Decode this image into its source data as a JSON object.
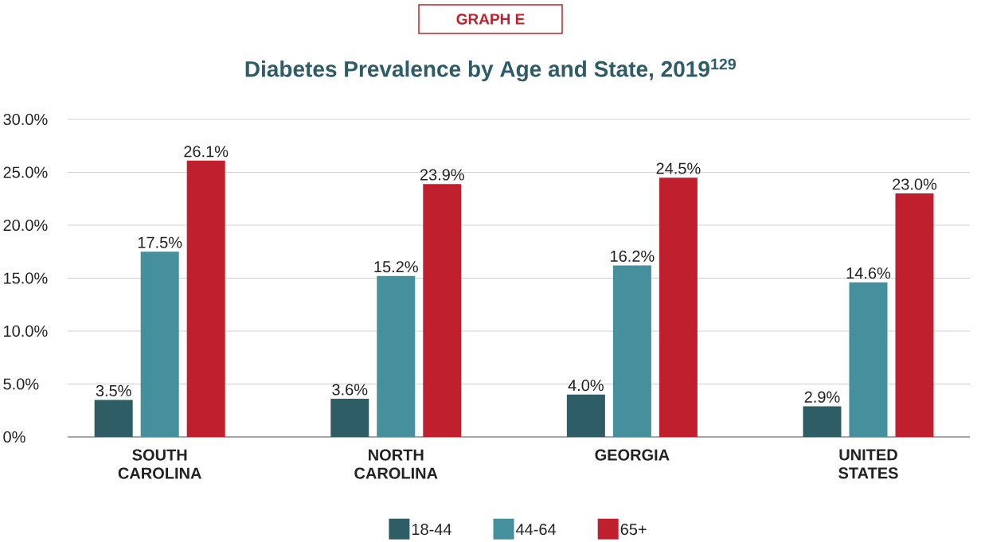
{
  "chart_data": {
    "type": "bar",
    "subtitle": "GRAPH E",
    "title": "Diabetes Prevalence by Age and State, 2019$^{129}$",
    "categories": [
      "SOUTH CAROLINA",
      "NORTH CAROLINA",
      "GEORGIA",
      "UNITED STATES"
    ],
    "series": [
      {
        "name": "18-44",
        "color": "#2f5d66",
        "values": [
          3.5,
          3.6,
          4.0,
          2.9
        ],
        "value_labels": [
          "3.5%",
          "3.6%",
          "4.0%",
          "2.9%"
        ]
      },
      {
        "name": "44-64",
        "color": "#468f9c",
        "values": [
          17.5,
          15.2,
          16.2,
          14.6
        ],
        "value_labels": [
          "17.5%",
          "15.2%",
          "16.2%",
          "14.6%"
        ]
      },
      {
        "name": "65+",
        "color": "#c0202e",
        "values": [
          26.1,
          23.9,
          24.5,
          23.0
        ],
        "value_labels": [
          "26.1%",
          "23.9%",
          "24.5%",
          "23.0%"
        ]
      }
    ],
    "ylim": [
      0,
      30
    ],
    "yticks": [
      {
        "value": 0,
        "label": "0%"
      },
      {
        "value": 5,
        "label": "5.0%"
      },
      {
        "value": 10,
        "label": "10.0%"
      },
      {
        "value": 15,
        "label": "15.0%"
      },
      {
        "value": 20,
        "label": "20.0%"
      },
      {
        "value": 25,
        "label": "25.0%"
      },
      {
        "value": 30,
        "label": "30.0%"
      }
    ],
    "grid": "y",
    "legend": "bottom"
  }
}
